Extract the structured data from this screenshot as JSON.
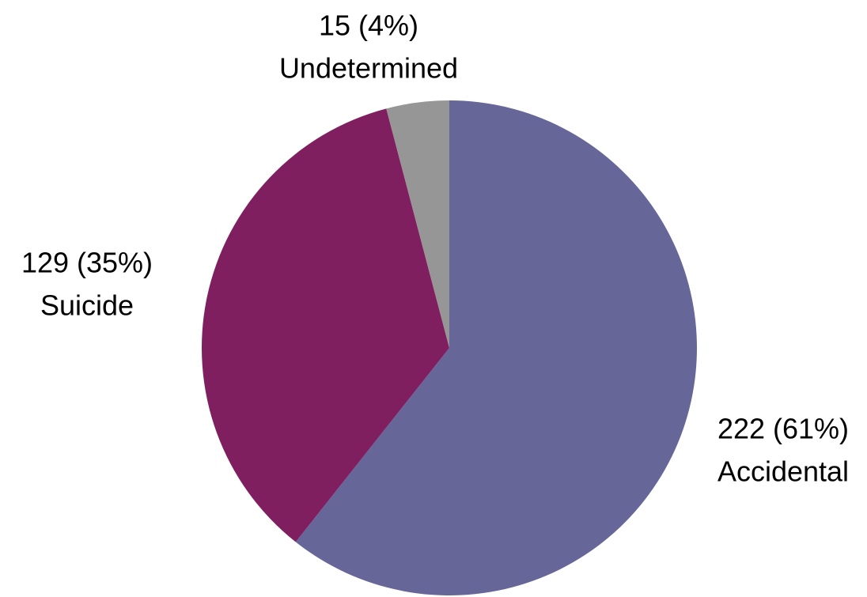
{
  "chart_data": {
    "type": "pie",
    "categories": [
      "Accidental",
      "Suicide",
      "Undetermined"
    ],
    "values": [
      222,
      129,
      15
    ],
    "value_labels": [
      "222 (61%)",
      "129 (35%)",
      "15 (4%)"
    ],
    "colors": [
      "#666699",
      "#7f1f5f",
      "#969696"
    ]
  }
}
